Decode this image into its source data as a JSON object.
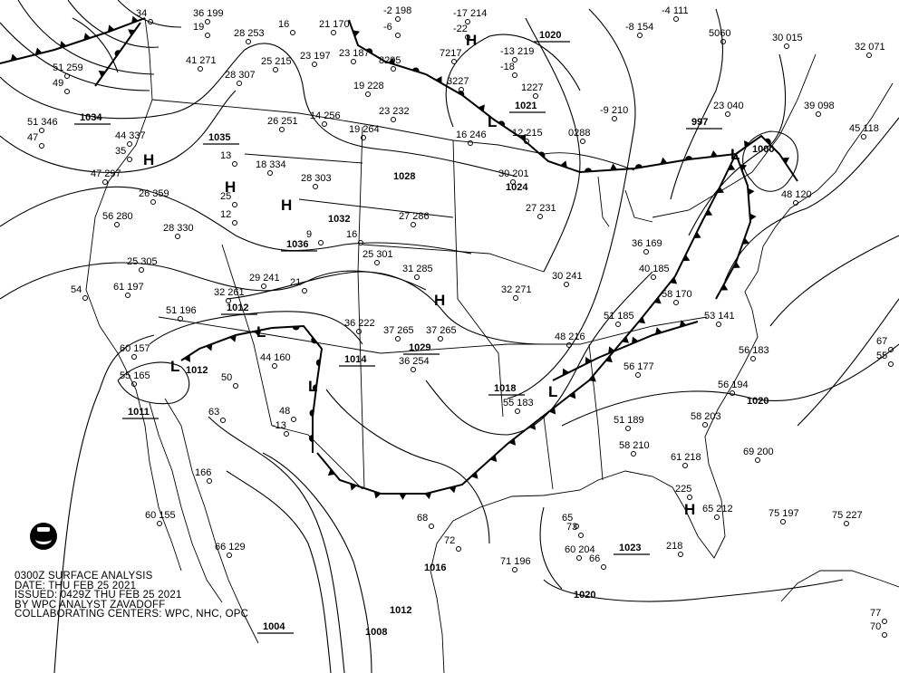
{
  "title_block": {
    "line1": "0300Z SURFACE ANALYSIS",
    "line2": "DATE: THU FEB 25 2021",
    "line3": "ISSUED: 0429Z THU FEB 25 2021",
    "line4": "BY WPC ANALYST ZAVADOFF",
    "line5": "COLLABORATING CENTERS: WPC, NHC, OPC"
  },
  "logo": {
    "name": "noaa-logo",
    "text": "NOAA"
  },
  "pressure_centers": [
    {
      "type": "H"
    },
    {
      "type": "H"
    },
    {
      "type": "H"
    },
    {
      "type": "H"
    },
    {
      "type": "L"
    },
    {
      "type": "H"
    },
    {
      "type": "L"
    },
    {
      "type": "L"
    },
    {
      "type": "L"
    },
    {
      "type": "L"
    },
    {
      "type": "L"
    },
    {
      "type": "H"
    }
  ],
  "pressure_labels": [
    {
      "value": "1034",
      "underlined": true
    },
    {
      "value": "1035",
      "underlined": true
    },
    {
      "value": "1036",
      "underlined": true
    },
    {
      "value": "1032",
      "underlined": false
    },
    {
      "value": "1020",
      "underlined": true
    },
    {
      "value": "1021",
      "underlined": true
    },
    {
      "value": "1028",
      "underlined": false
    },
    {
      "value": "1024",
      "underlined": false
    },
    {
      "value": "1029",
      "underlined": true
    },
    {
      "value": "1012",
      "underlined": true
    },
    {
      "value": "1012",
      "underlined": false
    },
    {
      "value": "1011",
      "underlined": true
    },
    {
      "value": "1014",
      "underlined": true
    },
    {
      "value": "1018",
      "underlined": true
    },
    {
      "value": "997",
      "underlined": true
    },
    {
      "value": "1000",
      "underlined": false
    },
    {
      "value": "1020",
      "underlined": false
    },
    {
      "value": "1023",
      "underlined": true
    },
    {
      "value": "1020",
      "underlined": false
    },
    {
      "value": "1016",
      "underlined": false
    },
    {
      "value": "1012",
      "underlined": false
    },
    {
      "value": "1008",
      "underlined": false
    },
    {
      "value": "1004",
      "underlined": true
    }
  ],
  "stations": [
    "34",
    "36 199",
    "19",
    "28 253",
    "16",
    "21 170",
    "-2 198",
    "-6",
    "-17 214",
    "-22",
    "51 259",
    "49",
    "41 271",
    "28 307",
    "25 215",
    "23 197",
    "23 187",
    "8205",
    "7217",
    "-13 219",
    "-18",
    "3227",
    "19 228",
    "23 232",
    "-9 210",
    "12 215",
    "0288",
    "51 346",
    "47",
    "44 337",
    "35",
    "26 251",
    "14 256",
    "19 264",
    "16 246",
    "47 297",
    "18 334",
    "28 303",
    "30 201",
    "26 359",
    "27 286",
    "27 231",
    "56 280",
    "28 330",
    "-4 111",
    "-8 154",
    "5060",
    "30 015",
    "32 071",
    "23 040",
    "39 098",
    "45 118",
    "48 120",
    "36 169",
    "40 185",
    "25 301",
    "31 285",
    "25 305",
    "29 241",
    "32 261",
    "61 197",
    "54",
    "51 196",
    "32 271",
    "30 241",
    "58 170",
    "53 141",
    "51 185",
    "36 222",
    "37 265",
    "37 265",
    "60 157",
    "55 165",
    "44 160",
    "36 254",
    "48 216",
    "56 177",
    "56 183",
    "56 194",
    "55 183",
    "58 203",
    "51 189",
    "58 210",
    "61 218",
    "69 200",
    "166",
    "60 155",
    "66 129",
    "225",
    "65 212",
    "75 197",
    "75 227",
    "218",
    "71 196",
    "60 204",
    "67",
    "55",
    "50",
    "48",
    "-13",
    "63",
    "1227",
    "13",
    "12",
    "25",
    "16",
    "9",
    "21",
    "72",
    "68",
    "73",
    "65",
    "66",
    "70",
    "77"
  ]
}
